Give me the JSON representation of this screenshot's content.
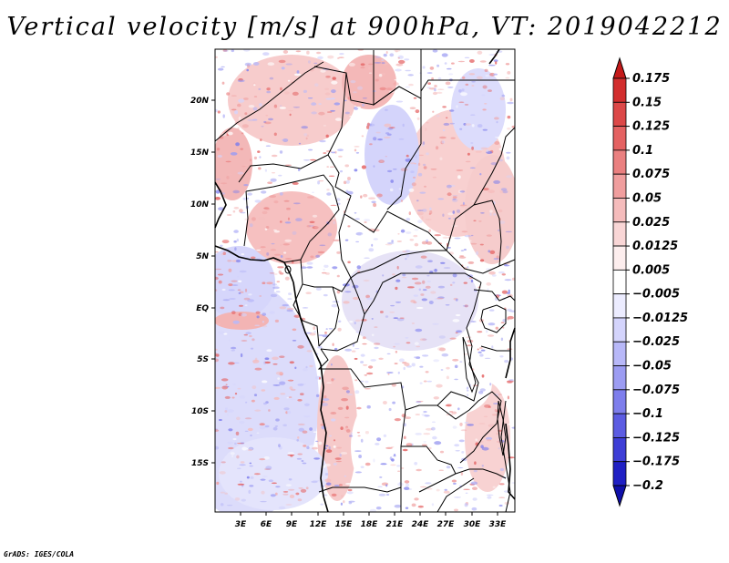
{
  "title": "Vertical velocity [m/s] at 900hPa, VT: 2019042212",
  "credit": "GrADS: IGES/COLA",
  "map": {
    "lat_labels": [
      "20N",
      "15N",
      "10N",
      "5N",
      "EQ",
      "5S",
      "10S",
      "15S"
    ],
    "lon_labels": [
      "3E",
      "6E",
      "9E",
      "12E",
      "15E",
      "18E",
      "21E",
      "24E",
      "27E",
      "30E",
      "33E"
    ]
  },
  "colorbar": {
    "labels": [
      "0.175",
      "0.15",
      "0.125",
      "0.1",
      "0.075",
      "0.05",
      "0.025",
      "0.0125",
      "0.005",
      "−0.005",
      "−0.0125",
      "−0.025",
      "−0.05",
      "−0.075",
      "−0.1",
      "−0.125",
      "−0.175",
      "−0.2"
    ],
    "colors": [
      "#c41a1a",
      "#d22e2e",
      "#dc4848",
      "#e46262",
      "#ea8080",
      "#f09e9e",
      "#f5bcbc",
      "#f9d6d6",
      "#fdeeee",
      "#ffffff",
      "#ececff",
      "#d4d4fc",
      "#b8b8f8",
      "#9c9cf2",
      "#7e7eec",
      "#5c5ce2",
      "#3e3ed6",
      "#2020c4",
      "#1010aa"
    ]
  }
}
